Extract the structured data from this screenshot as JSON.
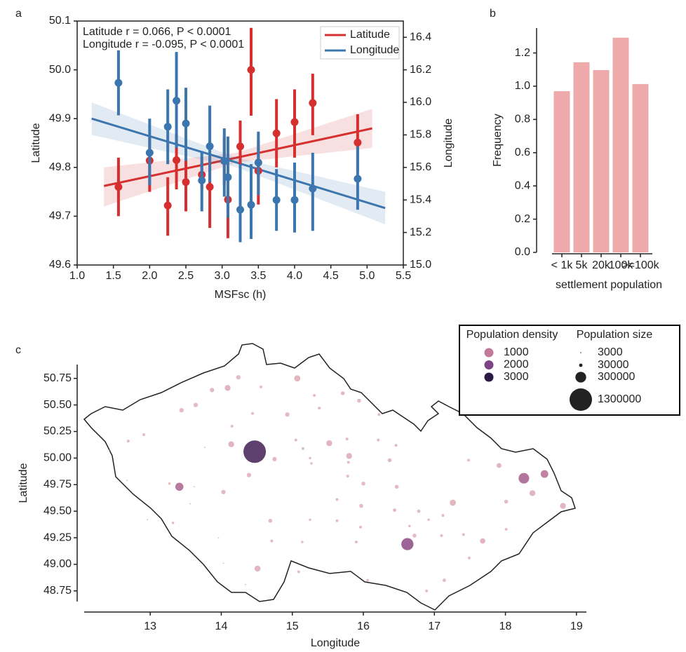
{
  "chart_data": [
    {
      "type": "errorbar",
      "panel_label": "a",
      "xlabel": "MSFsc (h)",
      "ylabel": "Latitude",
      "y2label": "Longitude",
      "annotations": [
        "Latitude r = 0.066, P < 0.0001",
        "Longitude r = -0.095, P < 0.0001"
      ],
      "legend": "upper right",
      "xlim": [
        1.0,
        5.5
      ],
      "ylim": [
        49.6,
        50.1
      ],
      "y2lim": [
        15.0,
        16.5
      ],
      "xticks": [
        {
          "value": 1,
          "label": "1.0"
        },
        1.5,
        {
          "value": 2,
          "label": "2.0"
        },
        2.5,
        {
          "value": 3,
          "label": "3.0"
        },
        3.5,
        {
          "value": 4,
          "label": "4.0"
        },
        4.5,
        {
          "value": 5,
          "label": "5.0"
        },
        5.5
      ],
      "yticks": [
        49.6,
        49.7,
        49.8,
        49.9,
        {
          "value": 50,
          "label": "50.0"
        },
        50.1
      ],
      "y2ticks": [
        {
          "value": 15,
          "label": "15.0"
        },
        15.2,
        15.4,
        15.6,
        15.8,
        {
          "value": 16,
          "label": "16.0"
        },
        16.2,
        16.4
      ],
      "x": [
        1.57,
        2.0,
        2.25,
        2.37,
        2.5,
        2.72,
        2.83,
        3.03,
        3.08,
        3.25,
        3.4,
        3.5,
        3.75,
        4.0,
        4.25,
        4.87
      ],
      "series": [
        {
          "name": "Latitude",
          "color": "#d62f2f",
          "values": [
            49.76,
            49.814,
            49.722,
            49.815,
            49.77,
            49.785,
            49.76,
            49.813,
            49.734,
            49.843,
            50.0,
            49.793,
            49.87,
            49.893,
            49.932,
            49.851
          ],
          "lower": [
            49.7,
            49.75,
            49.66,
            49.755,
            49.71,
            49.755,
            49.676,
            49.762,
            49.655,
            49.787,
            49.906,
            49.724,
            49.8,
            49.82,
            49.866,
            49.794
          ],
          "upper": [
            49.82,
            49.86,
            49.78,
            49.87,
            49.83,
            49.82,
            49.82,
            49.863,
            49.78,
            49.896,
            50.086,
            49.856,
            49.94,
            49.96,
            49.992,
            49.909
          ],
          "fit": {
            "x": [
              1.37,
              3.2,
              5.07
            ],
            "values": [
              49.762,
              49.82,
              49.88
            ],
            "lower": [
              49.72,
              49.81,
              49.84
            ],
            "upper": [
              49.8,
              49.83,
              49.92
            ]
          }
        },
        {
          "name": "Longitude",
          "color": "#3b76af",
          "axis": "y2",
          "values": [
            16.12,
            15.69,
            15.85,
            16.01,
            15.87,
            15.52,
            15.73,
            15.64,
            15.54,
            15.34,
            15.37,
            15.63,
            15.4,
            15.4,
            15.47,
            15.53
          ],
          "lower": [
            15.92,
            15.49,
            15.62,
            15.72,
            15.64,
            15.33,
            15.51,
            15.42,
            15.29,
            15.14,
            15.16,
            15.43,
            15.21,
            15.2,
            15.21,
            15.34
          ],
          "upper": [
            16.32,
            15.9,
            16.08,
            16.31,
            16.09,
            15.7,
            15.98,
            15.84,
            15.79,
            15.62,
            15.62,
            15.82,
            15.59,
            15.63,
            15.69,
            15.73
          ],
          "fit": {
            "x": [
              1.2,
              3.2,
              5.25
            ],
            "values": [
              15.9,
              15.63,
              15.35
            ],
            "lower": [
              15.8,
              15.6,
              15.25
            ],
            "upper": [
              16.0,
              15.66,
              15.45
            ]
          }
        }
      ]
    },
    {
      "type": "bar",
      "panel_label": "b",
      "xlabel": "settlement population",
      "ylabel": "Frequency",
      "categories": [
        "< 1k",
        "5k",
        "20k",
        "100k",
        ">=100k"
      ],
      "values": [
        0.97,
        1.144,
        1.097,
        1.292,
        1.013
      ],
      "color": "#eeaaaa",
      "ylim": [
        0,
        1.35
      ],
      "yticks": [
        {
          "value": 0,
          "label": "0.0"
        },
        0.2,
        0.4,
        0.6,
        0.8,
        {
          "value": 1,
          "label": "1.0"
        },
        1.2
      ]
    },
    {
      "type": "bubble",
      "panel_label": "c",
      "xlabel": "Longitude",
      "ylabel": "Latitude",
      "xlim": [
        12.07,
        19.14
      ],
      "ylim": [
        48.65,
        50.88
      ],
      "xticks": [
        13,
        14,
        15,
        16,
        17,
        18,
        19
      ],
      "yticks": [
        48.75,
        {
          "value": 49,
          "label": "49.00"
        },
        49.25,
        {
          "value": 49.5,
          "label": "49.50"
        },
        49.75,
        {
          "value": 50,
          "label": "50.00"
        },
        50.25,
        {
          "value": 50.5,
          "label": "50.50"
        },
        50.75
      ],
      "x": [
        14.24,
        14.56,
        13.87,
        14.09,
        13.64,
        13.44,
        15.07,
        15.31,
        15.38,
        15.71,
        15.94,
        16.22,
        14.93,
        14.44,
        14.15,
        12.91,
        12.69,
        13.77,
        14.14,
        14.75,
        15.05,
        15.15,
        15.52,
        15.8,
        15.77,
        15.25,
        15.27,
        15.79,
        16.37,
        16.21,
        16.46,
        17.48,
        17.91,
        18.26,
        18.55,
        18.38,
        18.01,
        17.26,
        16.78,
        16.47,
        16.0,
        15.78,
        15.63,
        14.39,
        13.62,
        13.27,
        13.41,
        12.42,
        12.67,
        14.03,
        13.56,
        14.69,
        15.25,
        15.63,
        15.97,
        15.96,
        16.44,
        17.12,
        16.92,
        17.1,
        16.65,
        17.41,
        16.72,
        16.62,
        17.68,
        17.49,
        18.01,
        18.81,
        15.9,
        15.14,
        14.71,
        13.96,
        13.32,
        12.96,
        14.03,
        14.51,
        15.09,
        16.06,
        16.89,
        17.14,
        14.34,
        14.47
      ],
      "y": [
        50.76,
        50.67,
        50.64,
        50.66,
        50.5,
        50.45,
        50.75,
        50.59,
        50.47,
        50.61,
        50.54,
        50.41,
        50.41,
        50.42,
        50.3,
        50.22,
        50.16,
        50.1,
        50.13,
        49.99,
        50.17,
        50.09,
        50.14,
        50.02,
        50.18,
        50.0,
        49.95,
        49.96,
        49.98,
        50.17,
        50.12,
        49.98,
        49.93,
        49.81,
        49.85,
        49.67,
        49.59,
        49.58,
        49.5,
        49.73,
        49.76,
        49.83,
        49.61,
        49.84,
        49.73,
        49.76,
        49.73,
        50.07,
        49.79,
        49.68,
        49.57,
        49.41,
        49.42,
        49.41,
        49.55,
        49.35,
        49.51,
        49.46,
        49.42,
        49.27,
        49.36,
        49.28,
        49.27,
        49.19,
        49.22,
        49.06,
        49.33,
        49.55,
        49.21,
        49.21,
        49.22,
        49.25,
        49.39,
        49.42,
        49.01,
        48.96,
        48.93,
        48.85,
        48.75,
        48.85,
        48.81,
        50.06
      ],
      "size": [
        50000,
        20000,
        50000,
        90000,
        50000,
        50000,
        100000,
        20000,
        20000,
        40000,
        40000,
        20000,
        50000,
        20000,
        20000,
        20000,
        20000,
        5000,
        90000,
        50000,
        20000,
        20000,
        90000,
        90000,
        20000,
        15000,
        15000,
        20000,
        40000,
        20000,
        20000,
        20000,
        60000,
        290000,
        150000,
        90000,
        40000,
        100000,
        30000,
        40000,
        40000,
        20000,
        20000,
        50000,
        5000,
        15000,
        170000,
        5000,
        5000,
        50000,
        5000,
        40000,
        15000,
        20000,
        40000,
        20000,
        30000,
        20000,
        15000,
        20000,
        15000,
        20000,
        40000,
        380000,
        75000,
        20000,
        20000,
        90000,
        20000,
        15000,
        20000,
        5000,
        15000,
        5000,
        5000,
        94000,
        20000,
        20000,
        20000,
        30000,
        5000,
        1300000
      ],
      "density": [
        400,
        400,
        400,
        450,
        400,
        400,
        450,
        400,
        400,
        400,
        400,
        400,
        400,
        400,
        400,
        400,
        400,
        400,
        450,
        400,
        400,
        400,
        450,
        450,
        400,
        400,
        400,
        400,
        400,
        400,
        400,
        400,
        450,
        1350,
        1100,
        450,
        400,
        450,
        400,
        400,
        400,
        400,
        400,
        400,
        400,
        400,
        1250,
        400,
        400,
        400,
        400,
        400,
        400,
        400,
        400,
        400,
        400,
        400,
        400,
        400,
        400,
        400,
        400,
        1700,
        450,
        400,
        400,
        450,
        400,
        400,
        400,
        400,
        400,
        400,
        400,
        450,
        400,
        400,
        400,
        400,
        400,
        2600
      ],
      "low_color": "#f6d8d3",
      "color_legend": {
        "title": "Population density",
        "values": [
          1000,
          2000,
          3000
        ],
        "colors": [
          "#c27a9a",
          "#7d4384",
          "#2b1a43"
        ]
      },
      "size_legend": {
        "title": "Population size",
        "values": [
          3000,
          30000,
          300000,
          1300000
        ]
      },
      "bubble_color": "#f0c4c2"
    }
  ]
}
